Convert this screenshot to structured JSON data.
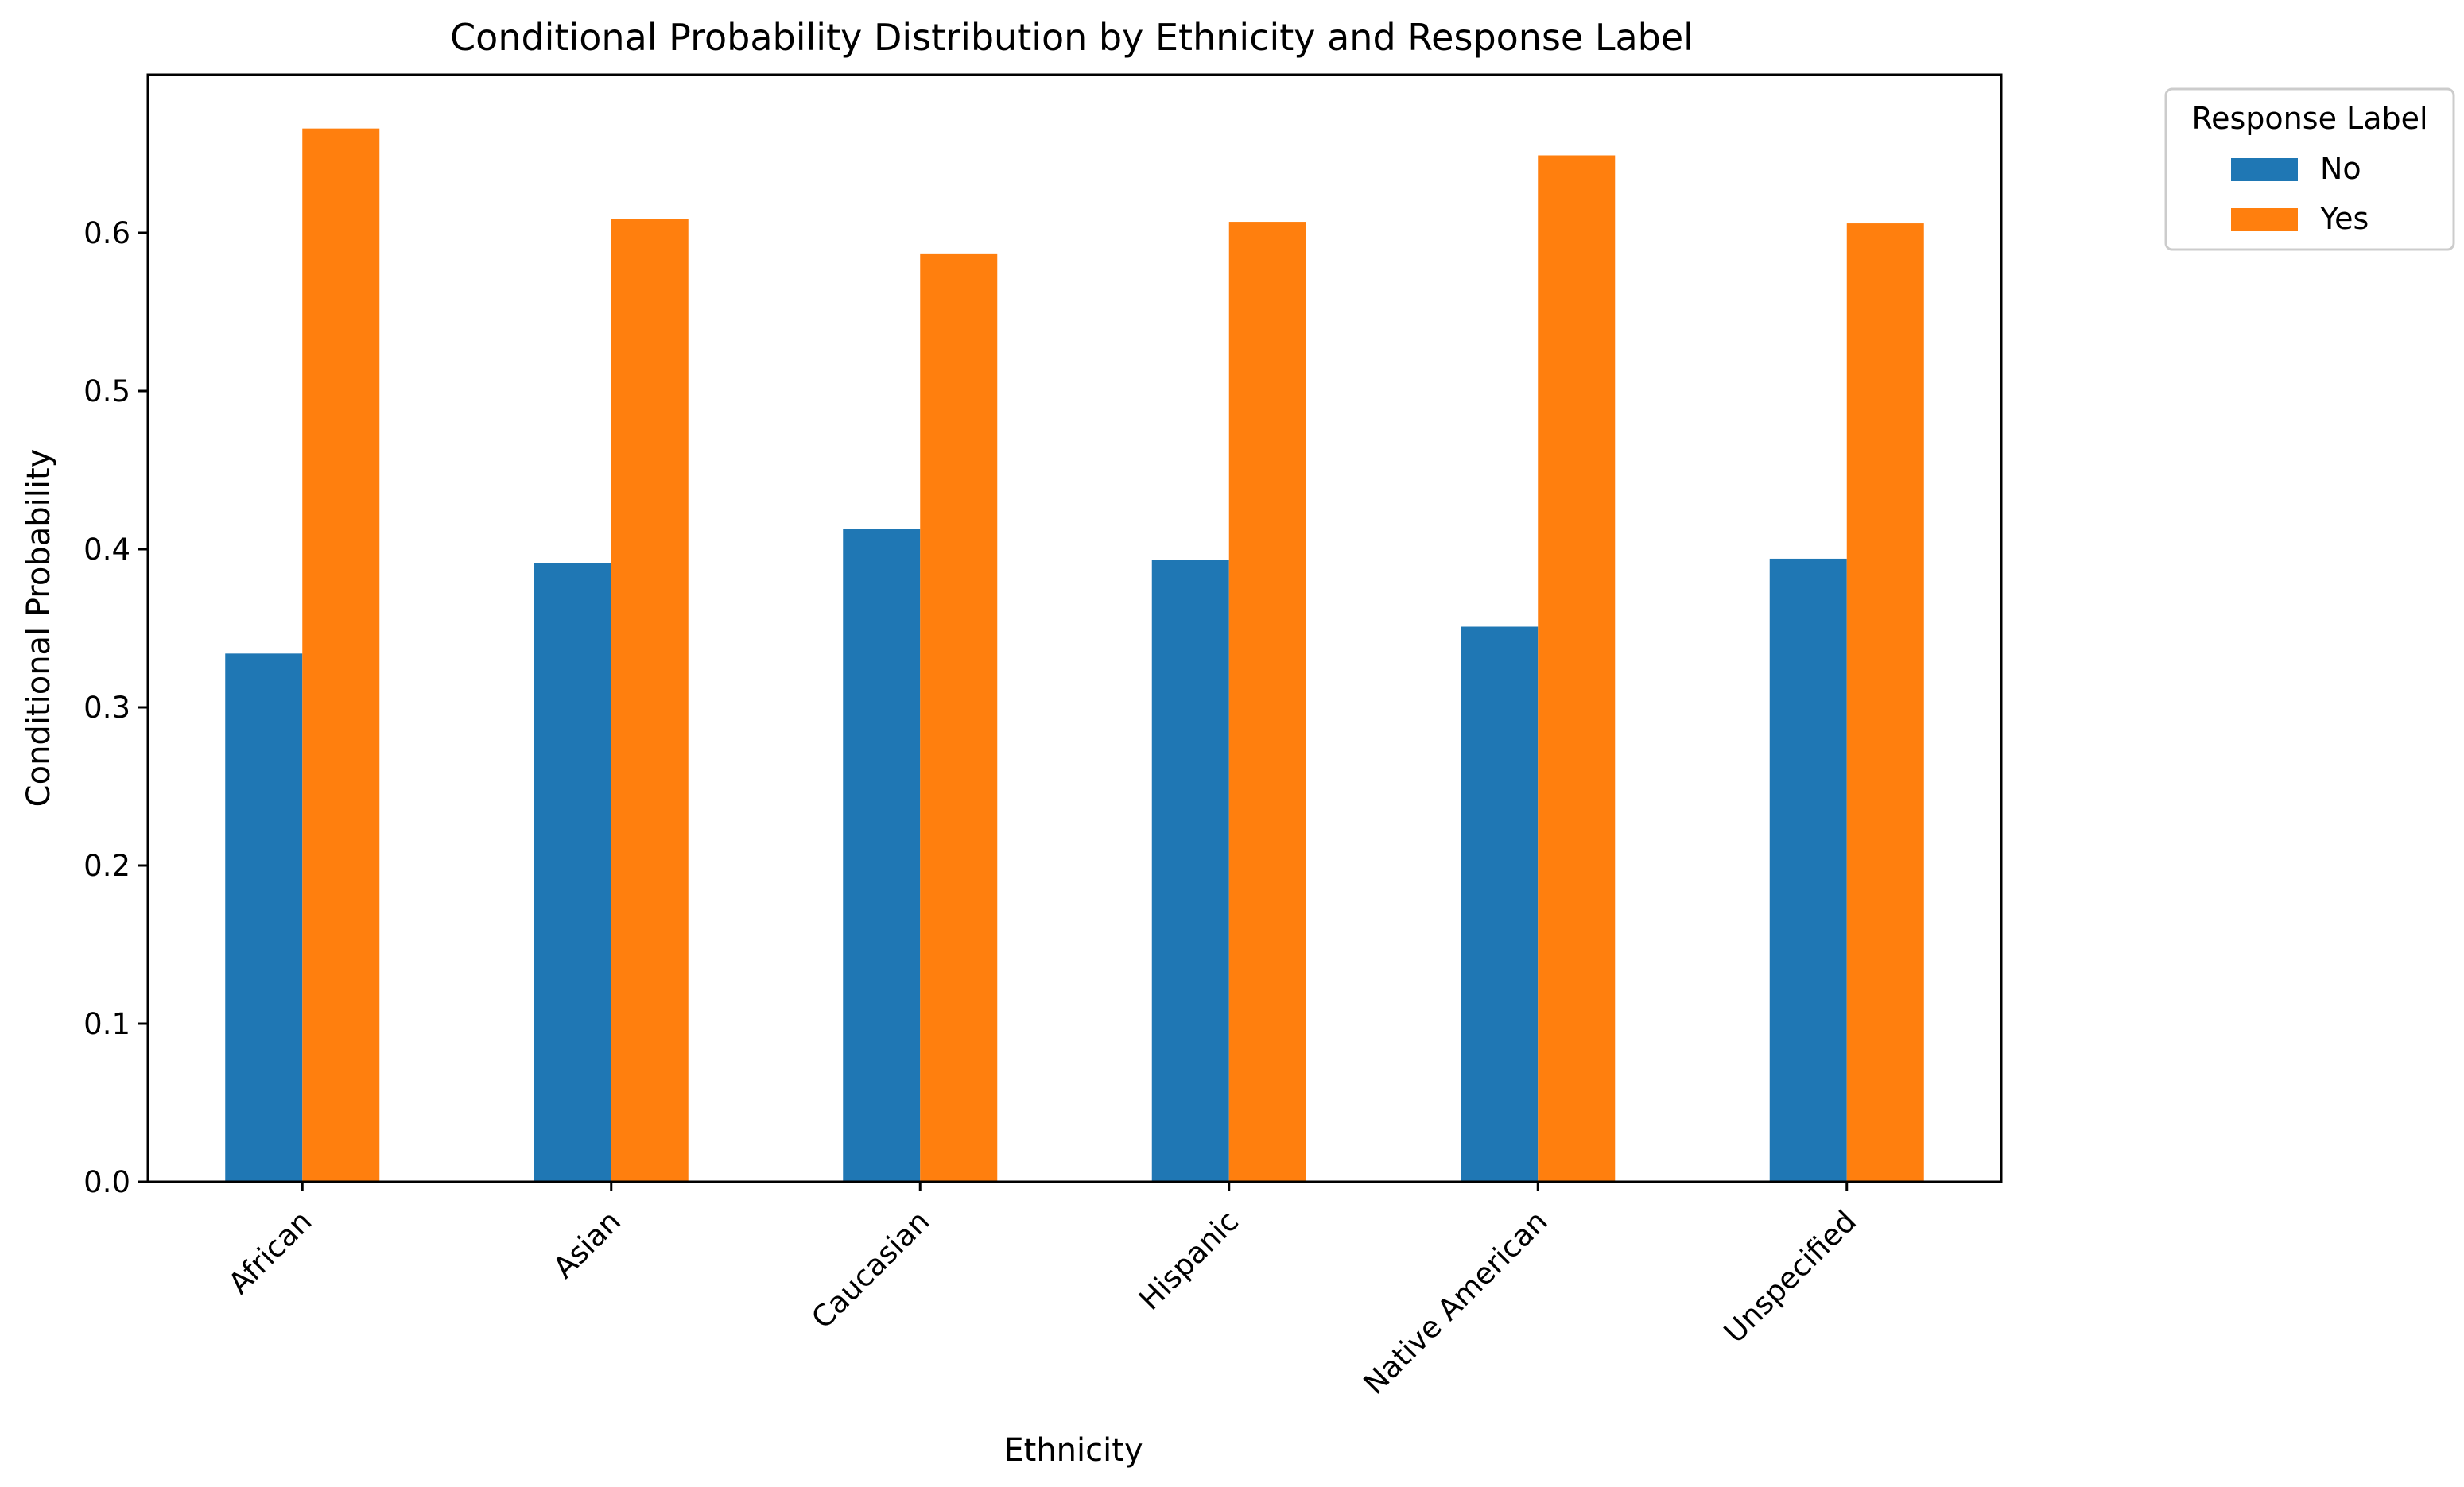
{
  "chart_data": {
    "type": "bar",
    "title": "Conditional Probability Distribution by Ethnicity and Response Label",
    "xlabel": "Ethnicity",
    "ylabel": "Conditional Probability",
    "categories": [
      "African",
      "Asian",
      "Caucasian",
      "Hispanic",
      "Native American",
      "Unspecified"
    ],
    "series": [
      {
        "name": "No",
        "color": "#1f77b4",
        "values": [
          0.334,
          0.391,
          0.413,
          0.393,
          0.351,
          0.394
        ]
      },
      {
        "name": "Yes",
        "color": "#ff7f0e",
        "values": [
          0.666,
          0.609,
          0.587,
          0.607,
          0.649,
          0.606
        ]
      }
    ],
    "ylim": [
      0,
      0.7
    ],
    "yticks": [
      "0.0",
      "0.1",
      "0.2",
      "0.3",
      "0.4",
      "0.5",
      "0.6"
    ],
    "legend": {
      "title": "Response Label",
      "placement": "outside-top-right"
    },
    "grid": false
  }
}
